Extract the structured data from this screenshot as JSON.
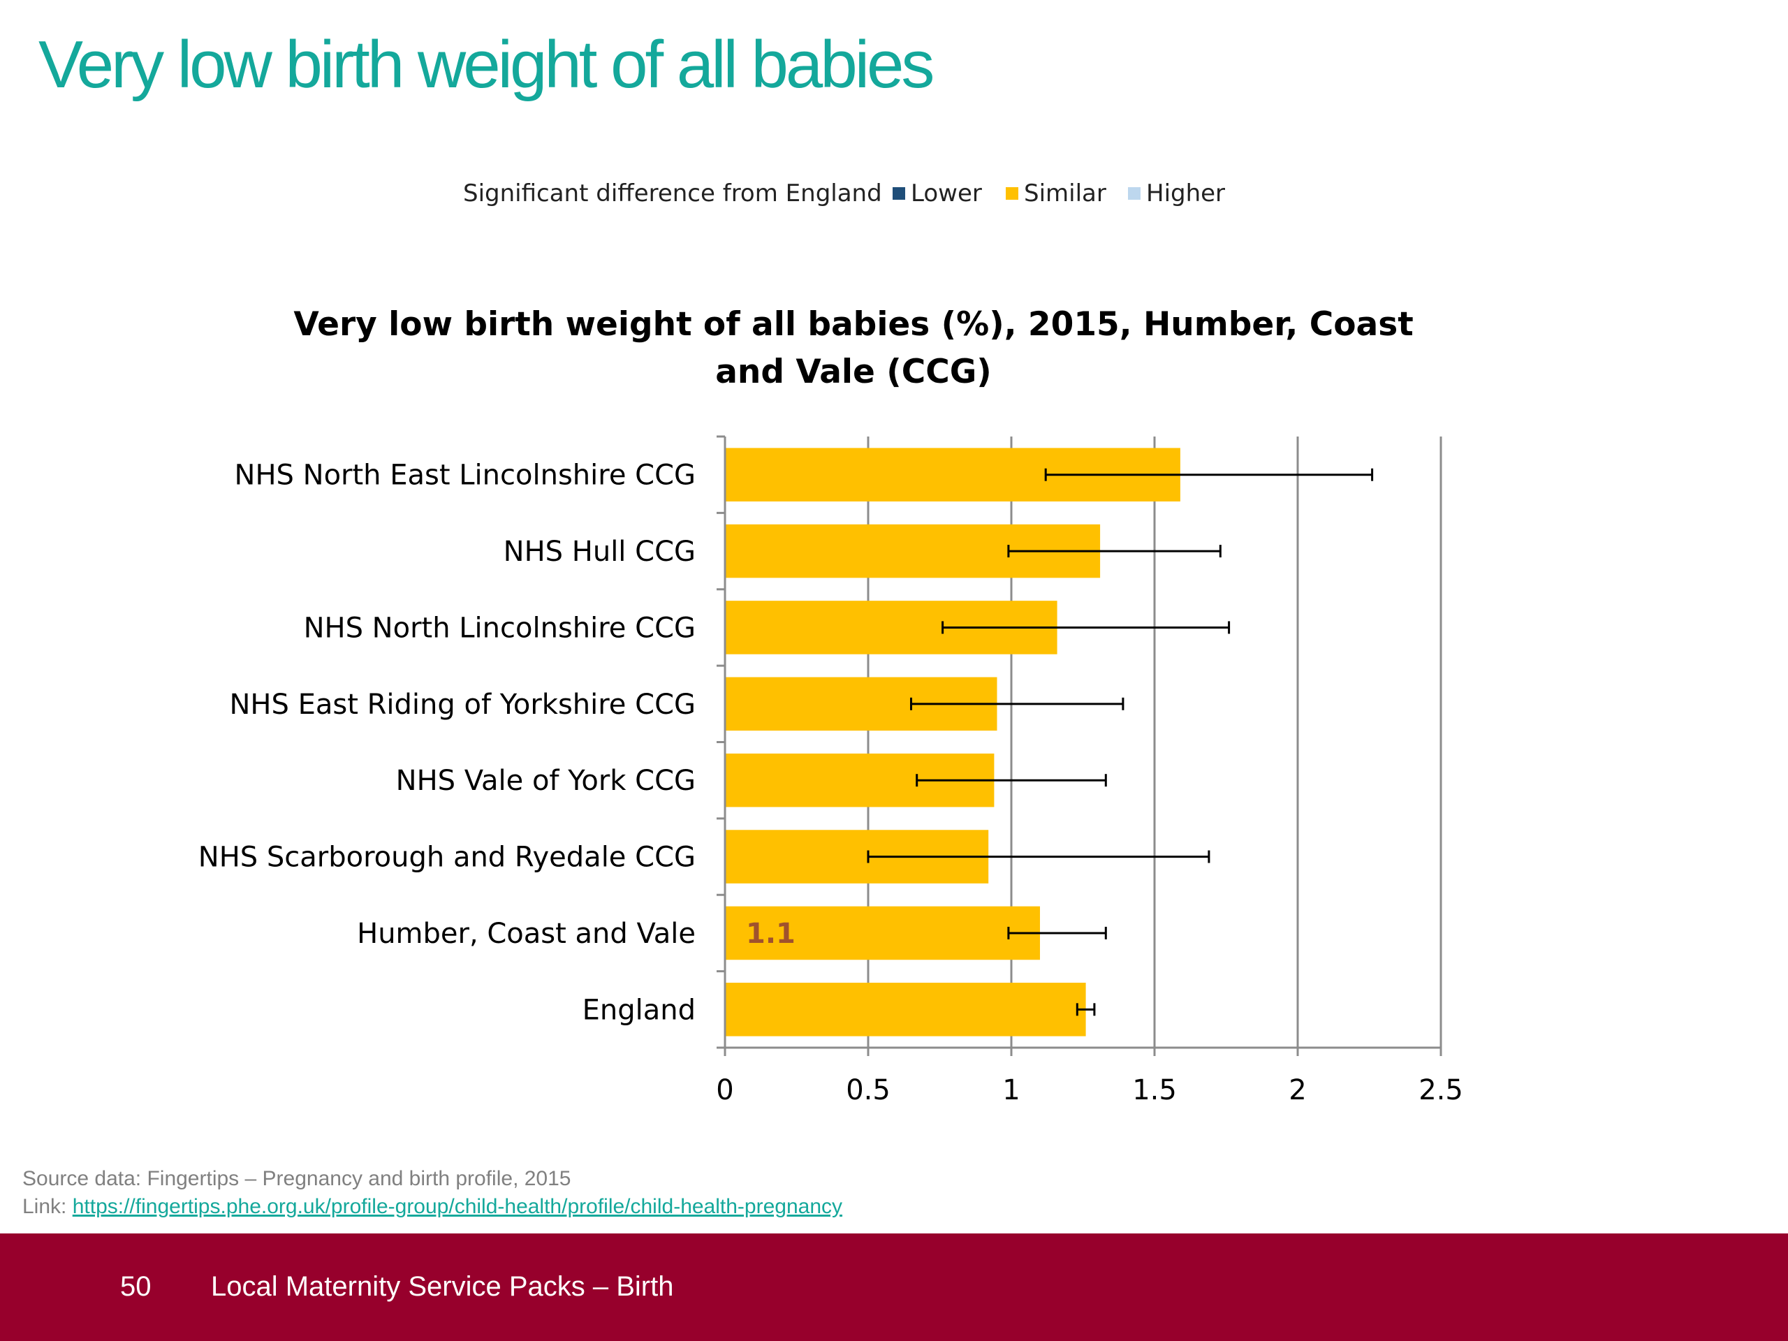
{
  "slide": {
    "title": "Very low birth weight of all babies"
  },
  "colors": {
    "title": "#14a89b",
    "lower": "#1f4e79",
    "similar": "#ffc000",
    "higher": "#bdd7ee",
    "data_label": "#a0522d",
    "footer": "#97002c"
  },
  "legend": {
    "prefix": "Significant difference from England",
    "items": [
      {
        "key": "lower",
        "label": "Lower"
      },
      {
        "key": "similar",
        "label": "Similar"
      },
      {
        "key": "higher",
        "label": "Higher"
      }
    ]
  },
  "chart_data": {
    "type": "bar",
    "orientation": "horizontal",
    "title_lines": [
      "Very low birth weight of all babies (%), 2015, Humber, Coast",
      "and Vale (CCG)"
    ],
    "categories": [
      "NHS North East Lincolnshire CCG",
      "NHS Hull CCG",
      "NHS North Lincolnshire CCG",
      "NHS East Riding of Yorkshire CCG",
      "NHS Vale of York CCG",
      "NHS Scarborough and Ryedale CCG",
      "Humber, Coast and Vale",
      "England"
    ],
    "values": [
      1.59,
      1.31,
      1.16,
      0.95,
      0.94,
      0.92,
      1.1,
      1.26
    ],
    "ci_lower": [
      1.12,
      0.99,
      0.76,
      0.65,
      0.67,
      0.5,
      0.99,
      1.23
    ],
    "ci_upper": [
      2.26,
      1.73,
      1.76,
      1.39,
      1.33,
      1.69,
      1.33,
      1.29
    ],
    "significance": [
      "similar",
      "similar",
      "similar",
      "similar",
      "similar",
      "similar",
      "similar",
      "similar"
    ],
    "data_labels": [
      {
        "index": 6,
        "text": "1.1"
      }
    ],
    "xlim": [
      0,
      2.5
    ],
    "xticks": [
      "0",
      "0.5",
      "1",
      "1.5",
      "2",
      "2.5"
    ],
    "xtick_values": [
      0,
      0.5,
      1,
      1.5,
      2,
      2.5
    ],
    "grid": true,
    "legend_position": "top"
  },
  "source": {
    "text": "Source data: Fingertips – Pregnancy and birth profile, 2015",
    "link_prefix": "Link: ",
    "link_text": "https://fingertips.phe.org.uk/profile-group/child-health/profile/child-health-pregnancy"
  },
  "footer": {
    "page_number": "50",
    "title": "Local Maternity Service Packs – Birth"
  }
}
